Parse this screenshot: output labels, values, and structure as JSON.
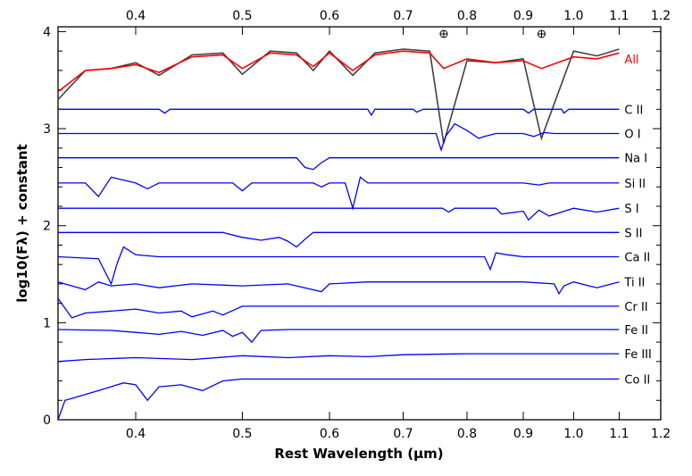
{
  "chart_data": {
    "type": "line",
    "title": "",
    "xlabel": "Rest Wavelength (μm)",
    "ylabel": "log10(Fλ) + constant",
    "xlim": [
      0.34,
      1.2
    ],
    "ylim": [
      0,
      4.05
    ],
    "x_scale": "log",
    "x_ticks": [
      0.4,
      0.5,
      0.6,
      0.7,
      0.8,
      0.9,
      1.0,
      1.1,
      1.2
    ],
    "x_tick_labels": [
      "0.4",
      "0.5",
      "0.6",
      "0.7",
      "0.8",
      "0.9",
      "1.0",
      "1.1",
      "1.2"
    ],
    "y_ticks": [
      0,
      1,
      2,
      3,
      4
    ],
    "y_tick_labels": [
      "0",
      "1",
      "2",
      "3",
      "4"
    ],
    "grid": false,
    "legend": "labels at right end of each spectrum",
    "telluric_markers": [
      0.762,
      0.935
    ],
    "observed": {
      "name": "All",
      "color": "#404040",
      "x": [
        0.34,
        0.36,
        0.38,
        0.4,
        0.42,
        0.45,
        0.48,
        0.5,
        0.53,
        0.56,
        0.58,
        0.6,
        0.63,
        0.66,
        0.7,
        0.74,
        0.762,
        0.8,
        0.85,
        0.9,
        0.935,
        1.0,
        1.05,
        1.1
      ],
      "values": [
        3.3,
        3.6,
        3.62,
        3.68,
        3.55,
        3.76,
        3.78,
        3.56,
        3.8,
        3.78,
        3.6,
        3.8,
        3.55,
        3.78,
        3.82,
        3.8,
        2.85,
        3.7,
        3.68,
        3.72,
        2.9,
        3.8,
        3.75,
        3.82
      ]
    },
    "model": {
      "name": "All",
      "color": "#ff0000",
      "x": [
        0.34,
        0.36,
        0.38,
        0.4,
        0.42,
        0.45,
        0.48,
        0.5,
        0.53,
        0.56,
        0.58,
        0.6,
        0.63,
        0.66,
        0.7,
        0.74,
        0.762,
        0.8,
        0.85,
        0.9,
        0.935,
        1.0,
        1.05,
        1.1
      ],
      "values": [
        3.38,
        3.6,
        3.62,
        3.66,
        3.58,
        3.74,
        3.76,
        3.62,
        3.78,
        3.76,
        3.64,
        3.78,
        3.6,
        3.76,
        3.8,
        3.78,
        3.62,
        3.72,
        3.68,
        3.7,
        3.62,
        3.74,
        3.72,
        3.78
      ]
    },
    "series": [
      {
        "name": "C II",
        "color": "#0000ff",
        "baseline": 3.2,
        "x": [
          0.34,
          0.42,
          0.425,
          0.43,
          0.65,
          0.655,
          0.66,
          0.715,
          0.72,
          0.73,
          0.9,
          0.91,
          0.92,
          0.975,
          0.98,
          0.99,
          1.1
        ],
        "values": [
          3.2,
          3.2,
          3.16,
          3.2,
          3.2,
          3.14,
          3.2,
          3.2,
          3.17,
          3.2,
          3.2,
          3.16,
          3.2,
          3.2,
          3.16,
          3.2,
          3.2
        ]
      },
      {
        "name": "O I",
        "color": "#0000ff",
        "baseline": 2.95,
        "x": [
          0.34,
          0.75,
          0.758,
          0.765,
          0.78,
          0.8,
          0.82,
          0.83,
          0.85,
          0.9,
          0.92,
          0.94,
          0.96,
          1.1
        ],
        "values": [
          2.95,
          2.95,
          2.78,
          2.92,
          3.05,
          2.98,
          2.9,
          2.92,
          2.95,
          2.95,
          2.92,
          2.96,
          2.95,
          2.95
        ]
      },
      {
        "name": "Na I",
        "color": "#0000ff",
        "baseline": 2.7,
        "x": [
          0.34,
          0.56,
          0.57,
          0.58,
          0.59,
          0.6,
          0.62,
          1.1
        ],
        "values": [
          2.7,
          2.7,
          2.6,
          2.58,
          2.65,
          2.7,
          2.7,
          2.7
        ]
      },
      {
        "name": "Si II",
        "color": "#0000ff",
        "baseline": 2.44,
        "x": [
          0.34,
          0.36,
          0.37,
          0.38,
          0.4,
          0.41,
          0.42,
          0.49,
          0.5,
          0.51,
          0.58,
          0.59,
          0.6,
          0.62,
          0.63,
          0.64,
          0.65,
          0.9,
          0.93,
          0.95,
          1.1
        ],
        "values": [
          2.44,
          2.44,
          2.3,
          2.5,
          2.44,
          2.38,
          2.44,
          2.44,
          2.36,
          2.44,
          2.44,
          2.4,
          2.44,
          2.44,
          2.18,
          2.5,
          2.44,
          2.44,
          2.42,
          2.44,
          2.44
        ]
      },
      {
        "name": "S I",
        "color": "#0000ff",
        "baseline": 2.18,
        "x": [
          0.34,
          0.76,
          0.77,
          0.78,
          0.85,
          0.86,
          0.9,
          0.91,
          0.93,
          0.95,
          1.0,
          1.05,
          1.1
        ],
        "values": [
          2.18,
          2.18,
          2.14,
          2.18,
          2.18,
          2.12,
          2.15,
          2.06,
          2.16,
          2.1,
          2.18,
          2.14,
          2.18
        ]
      },
      {
        "name": "S II",
        "color": "#0000ff",
        "baseline": 1.93,
        "x": [
          0.34,
          0.48,
          0.5,
          0.52,
          0.54,
          0.55,
          0.56,
          0.57,
          0.58,
          1.1
        ],
        "values": [
          1.93,
          1.93,
          1.88,
          1.85,
          1.88,
          1.84,
          1.78,
          1.86,
          1.93,
          1.93
        ]
      },
      {
        "name": "Ca II",
        "color": "#0000ff",
        "baseline": 1.68,
        "x": [
          0.34,
          0.37,
          0.38,
          0.385,
          0.39,
          0.4,
          0.42,
          0.83,
          0.84,
          0.85,
          0.87,
          0.9,
          1.1
        ],
        "values": [
          1.68,
          1.66,
          1.4,
          1.62,
          1.78,
          1.7,
          1.68,
          1.68,
          1.55,
          1.72,
          1.7,
          1.68,
          1.68
        ]
      },
      {
        "name": "Ti II",
        "color": "#0000ff",
        "baseline": 1.42,
        "x": [
          0.34,
          0.36,
          0.37,
          0.38,
          0.4,
          0.42,
          0.45,
          0.5,
          0.55,
          0.59,
          0.6,
          0.65,
          0.9,
          0.96,
          0.97,
          0.98,
          1.0,
          1.05,
          1.1
        ],
        "values": [
          1.42,
          1.34,
          1.42,
          1.38,
          1.4,
          1.36,
          1.4,
          1.38,
          1.4,
          1.32,
          1.4,
          1.42,
          1.42,
          1.4,
          1.3,
          1.38,
          1.42,
          1.36,
          1.42
        ]
      },
      {
        "name": "Cr II",
        "color": "#0000ff",
        "baseline": 1.17,
        "x": [
          0.34,
          0.35,
          0.36,
          0.38,
          0.4,
          0.42,
          0.44,
          0.45,
          0.47,
          0.48,
          0.5,
          0.55,
          0.6,
          1.1
        ],
        "values": [
          1.25,
          1.05,
          1.1,
          1.12,
          1.14,
          1.1,
          1.12,
          1.06,
          1.12,
          1.08,
          1.17,
          1.17,
          1.17,
          1.17
        ]
      },
      {
        "name": "Fe II",
        "color": "#0000ff",
        "baseline": 0.93,
        "x": [
          0.34,
          0.38,
          0.4,
          0.42,
          0.44,
          0.46,
          0.48,
          0.49,
          0.5,
          0.51,
          0.52,
          0.55,
          1.1
        ],
        "values": [
          0.93,
          0.92,
          0.9,
          0.88,
          0.91,
          0.87,
          0.92,
          0.86,
          0.9,
          0.8,
          0.92,
          0.93,
          0.93
        ]
      },
      {
        "name": "Fe III",
        "color": "#0000ff",
        "baseline": 0.68,
        "x": [
          0.34,
          0.36,
          0.4,
          0.45,
          0.5,
          0.55,
          0.6,
          0.65,
          0.7,
          0.8,
          0.9,
          1.0,
          1.1
        ],
        "values": [
          0.6,
          0.62,
          0.64,
          0.62,
          0.66,
          0.64,
          0.66,
          0.65,
          0.67,
          0.68,
          0.68,
          0.68,
          0.68
        ]
      },
      {
        "name": "Co II",
        "color": "#0000ff",
        "baseline": 0.42,
        "x": [
          0.34,
          0.345,
          0.35,
          0.37,
          0.39,
          0.4,
          0.41,
          0.42,
          0.44,
          0.46,
          0.48,
          0.5,
          0.55,
          1.1
        ],
        "values": [
          0.0,
          0.2,
          0.22,
          0.3,
          0.38,
          0.36,
          0.2,
          0.34,
          0.36,
          0.3,
          0.4,
          0.42,
          0.42,
          0.42
        ]
      }
    ]
  }
}
